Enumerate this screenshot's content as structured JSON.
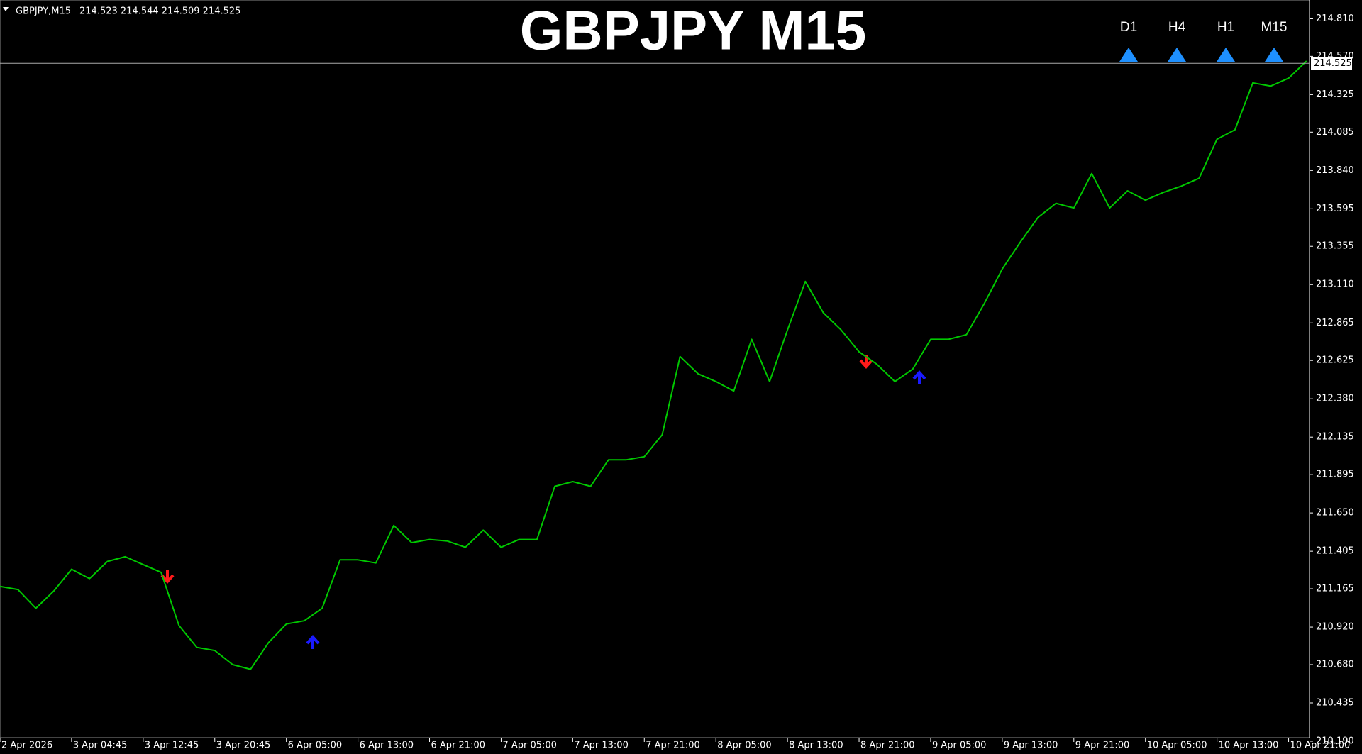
{
  "header": {
    "symbol": "GBPJPY,M15",
    "ohlc": "214.523 214.544 214.509 214.525"
  },
  "timeframes": [
    "D1",
    "H4",
    "H1",
    "M15"
  ],
  "chart_data": {
    "type": "line",
    "title": "GBPJPY M15",
    "categories": [
      "2 Apr 2026",
      null,
      null,
      null,
      "3 Apr 04:45",
      null,
      null,
      null,
      "3 Apr 12:45",
      null,
      null,
      null,
      "3 Apr 20:45",
      null,
      null,
      null,
      "6 Apr 05:00",
      null,
      null,
      null,
      "6 Apr 13:00",
      null,
      null,
      null,
      "6 Apr 21:00",
      null,
      null,
      null,
      "7 Apr 05:00",
      null,
      null,
      null,
      "7 Apr 13:00",
      null,
      null,
      null,
      "7 Apr 21:00",
      null,
      null,
      null,
      "8 Apr 05:00",
      null,
      null,
      null,
      "8 Apr 13:00",
      null,
      null,
      null,
      "8 Apr 21:00",
      null,
      null,
      null,
      "9 Apr 05:00",
      null,
      null,
      null,
      "9 Apr 13:00",
      null,
      null,
      null,
      "9 Apr 21:00",
      null,
      null,
      null,
      "10 Apr 05:00",
      null,
      null,
      null,
      "10 Apr 13:00",
      null,
      null,
      null,
      "10 Apr 21:00",
      null
    ],
    "series": [
      {
        "name": "GBPJPY",
        "color": "#00c800",
        "values": [
          211.18,
          211.16,
          211.04,
          211.15,
          211.29,
          211.23,
          211.34,
          211.37,
          211.32,
          211.27,
          210.93,
          210.79,
          210.77,
          210.68,
          210.65,
          210.82,
          210.94,
          210.96,
          211.04,
          211.35,
          211.35,
          211.33,
          211.57,
          211.46,
          211.48,
          211.47,
          211.43,
          211.54,
          211.43,
          211.48,
          211.48,
          211.82,
          211.85,
          211.82,
          211.99,
          211.99,
          212.01,
          212.15,
          212.65,
          212.54,
          212.49,
          212.43,
          212.76,
          212.49,
          212.82,
          213.13,
          212.93,
          212.82,
          212.68,
          212.6,
          212.49,
          212.57,
          212.76,
          212.76,
          212.79,
          212.99,
          213.21,
          213.38,
          213.54,
          213.63,
          213.6,
          213.82,
          213.6,
          213.71,
          213.65,
          213.7,
          213.74,
          213.79,
          214.04,
          214.1,
          214.4,
          214.38,
          214.43,
          214.54
        ]
      }
    ],
    "current_price": 214.525,
    "ylim": [
      210.19,
      214.93
    ],
    "yticks": [
      {
        "value": 214.81,
        "label": "214.810"
      },
      {
        "value": 214.57,
        "label": "214.570"
      },
      214.325,
      214.085,
      {
        "value": 213.84,
        "label": "213.840"
      },
      213.595,
      213.355,
      {
        "value": 213.11,
        "label": "213.110"
      },
      212.865,
      212.625,
      {
        "value": 212.38,
        "label": "212.380"
      },
      212.135,
      211.895,
      {
        "value": 211.65,
        "label": "211.650"
      },
      211.405,
      211.165,
      {
        "value": 210.92,
        "label": "210.920"
      },
      {
        "value": 210.68,
        "label": "210.680"
      },
      210.435,
      {
        "value": 210.19,
        "label": "210.190"
      }
    ],
    "grid": false
  }
}
